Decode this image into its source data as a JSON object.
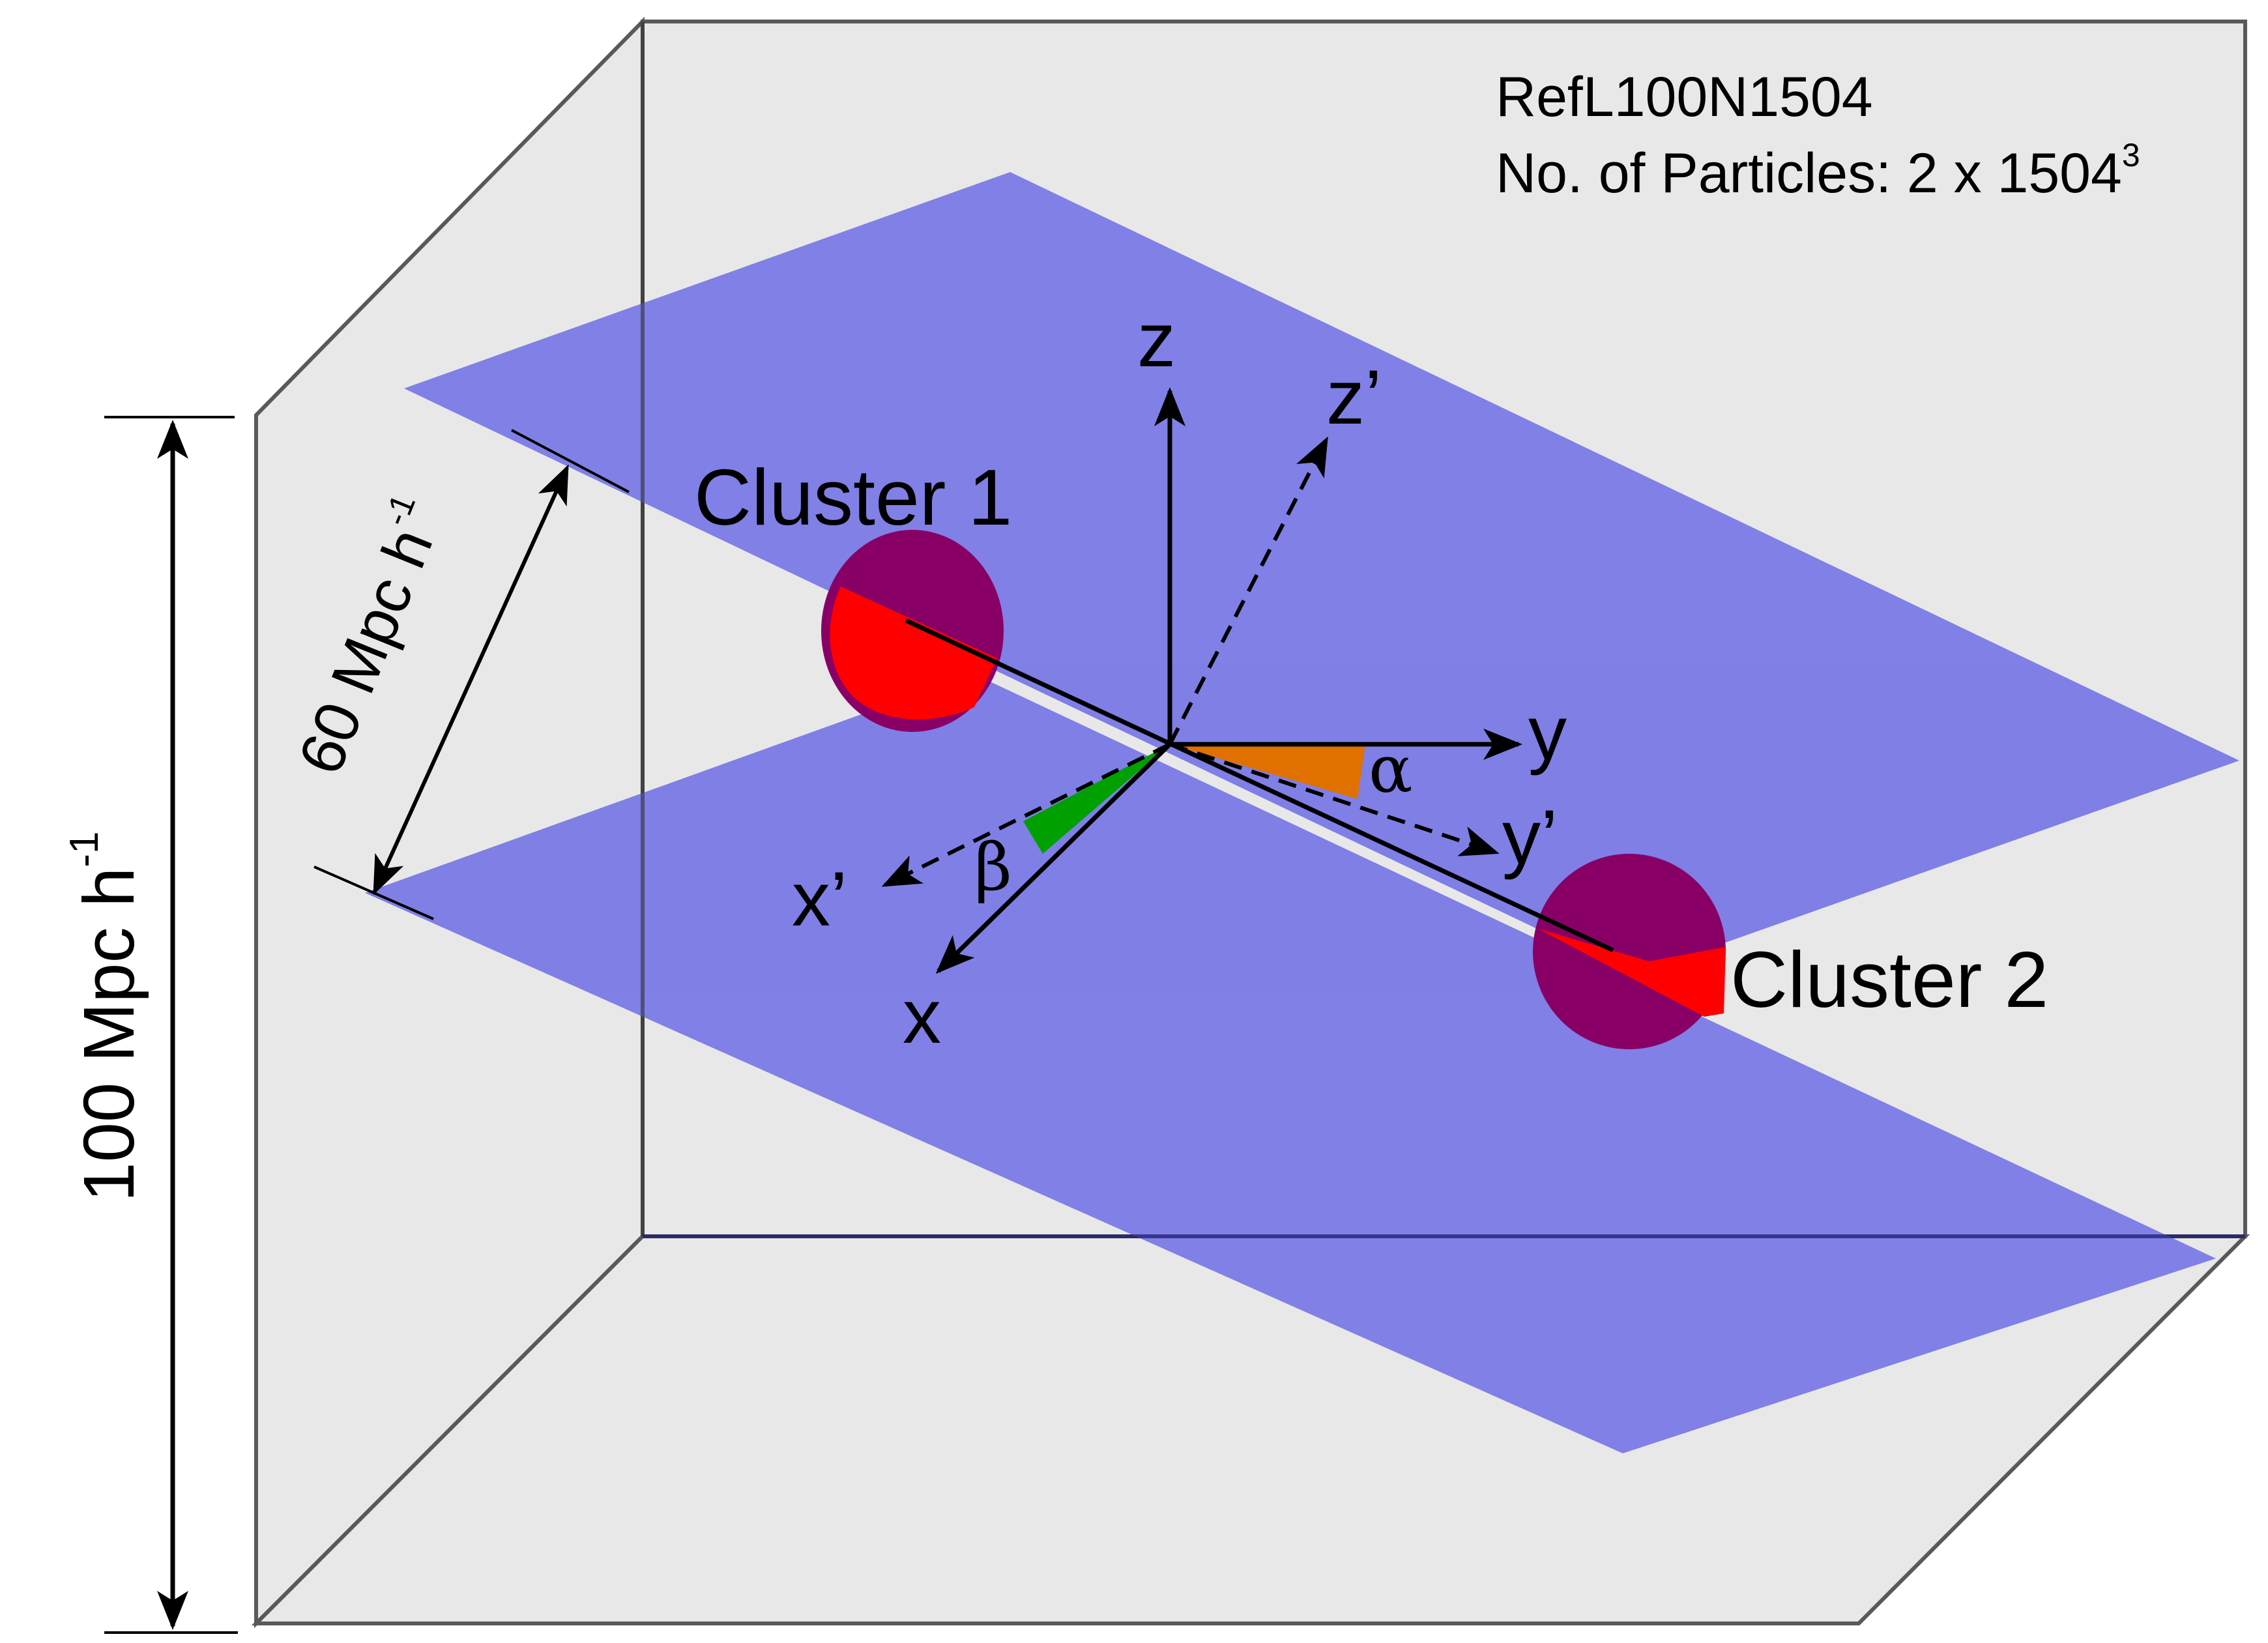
{
  "info": {
    "run_name": "RefL100N1504",
    "particles_label": "No. of Particles: 2 x 1504",
    "particles_exponent": "3"
  },
  "dimensions": {
    "box_size_label": "100 Mpc h",
    "box_size_exponent": "-1",
    "slab_thickness_label": "60 Mpc h",
    "slab_thickness_exponent": "-1"
  },
  "clusters": {
    "cluster1_label": "Cluster 1",
    "cluster2_label": "Cluster 2"
  },
  "axes": {
    "x": "x",
    "y": "y",
    "z": "z",
    "x_prime": "x’",
    "y_prime": "y’",
    "z_prime": "z’"
  },
  "angles": {
    "alpha": "α",
    "beta": "β"
  },
  "colors": {
    "box_fill": "#e8e8e8",
    "box_edge": "#595959",
    "plane_fill": "#7a7ae6",
    "cluster_fill": "#880066",
    "cluster_intersection": "#ff0000",
    "alpha_wedge": "#e07000",
    "beta_wedge": "#00a000"
  }
}
